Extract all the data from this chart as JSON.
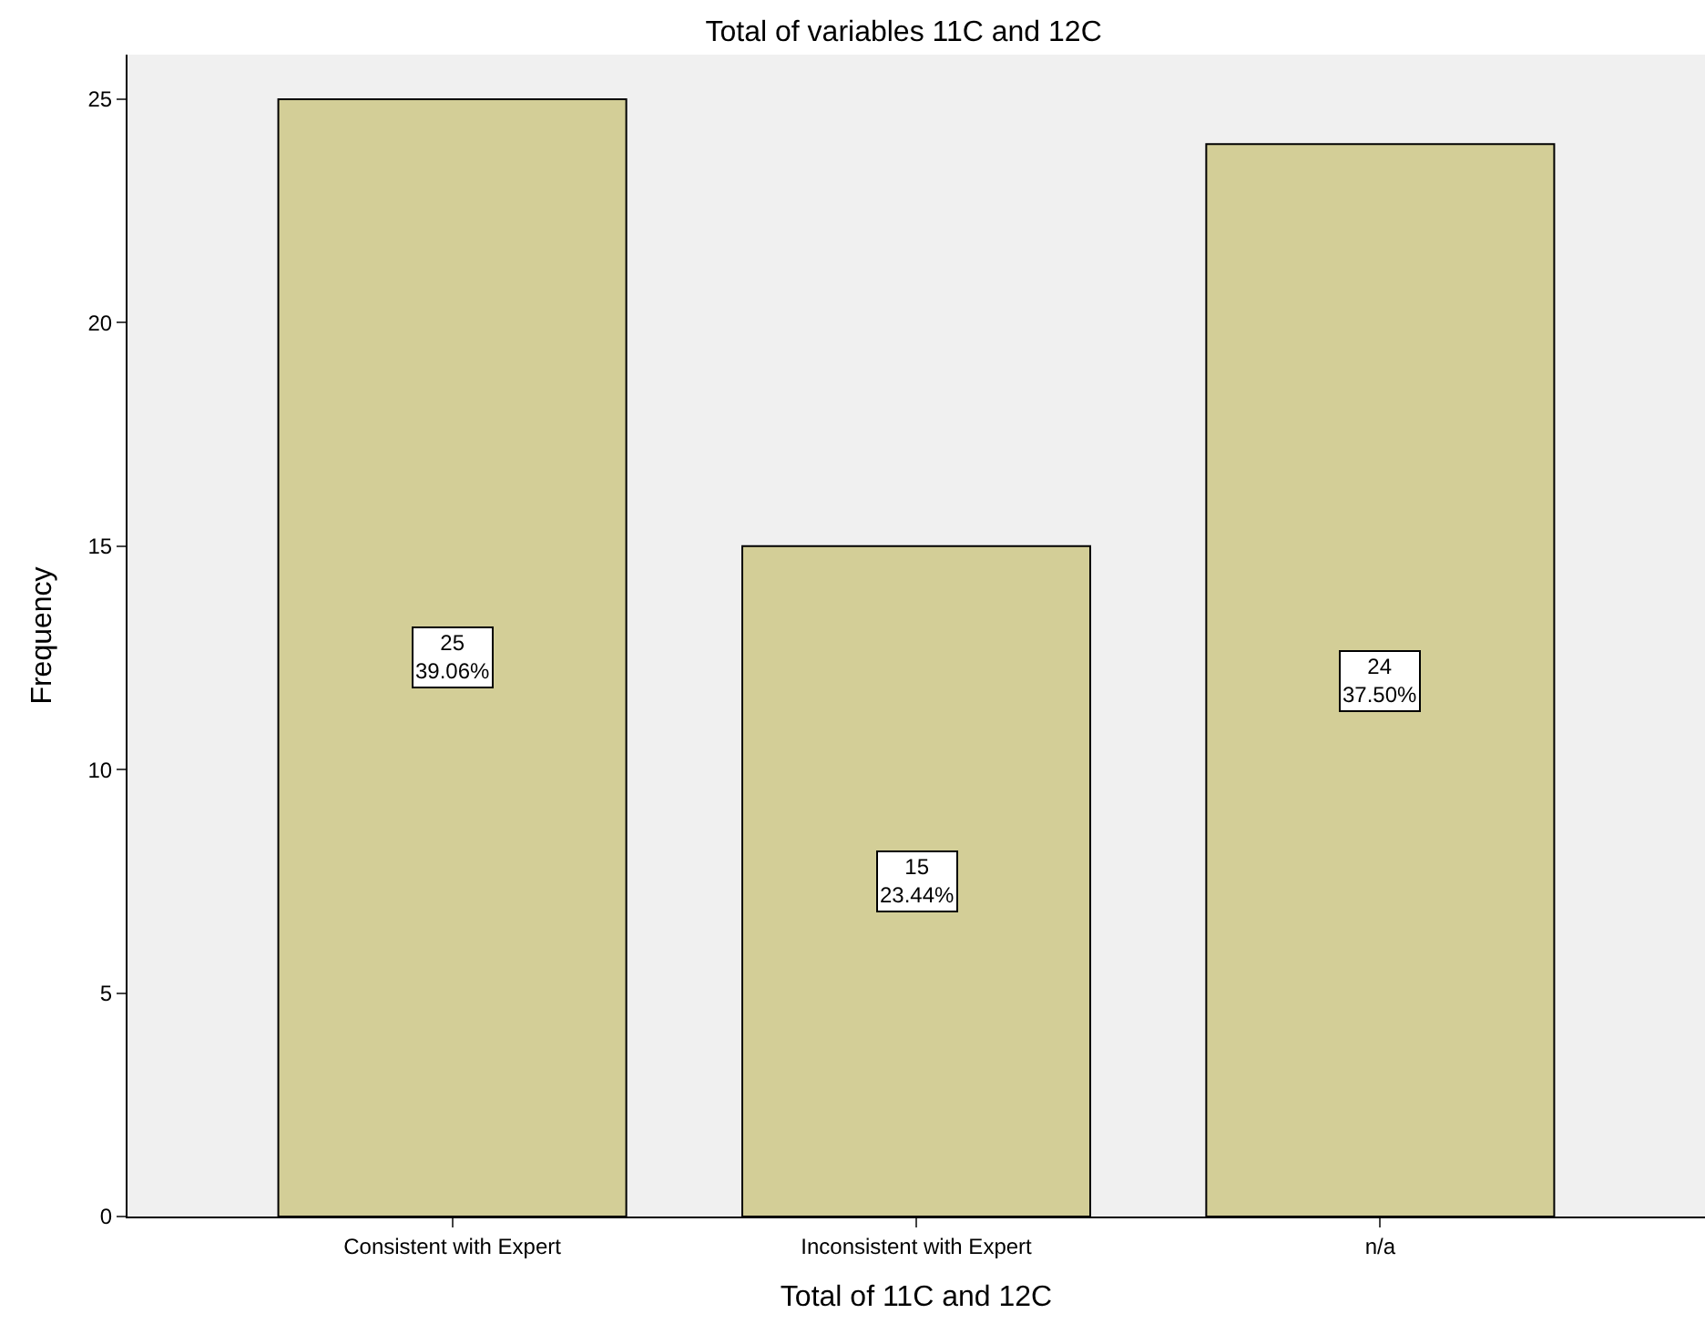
{
  "chart_data": {
    "type": "bar",
    "title": "Total of variables 11C and 12C",
    "xlabel": "Total of 11C and 12C",
    "ylabel": "Frequency",
    "categories": [
      "Consistent with Expert",
      "Inconsistent with Expert",
      "n/a"
    ],
    "values": [
      25,
      15,
      24
    ],
    "color": "#d3ce97",
    "value_labels": [
      "25\n39.06%",
      "15\n23.44%",
      "24\n37.50%"
    ],
    "ylim": [
      0,
      26
    ],
    "yticks": [
      0,
      5,
      10,
      15,
      20,
      25
    ],
    "grid": false,
    "legend": false
  }
}
